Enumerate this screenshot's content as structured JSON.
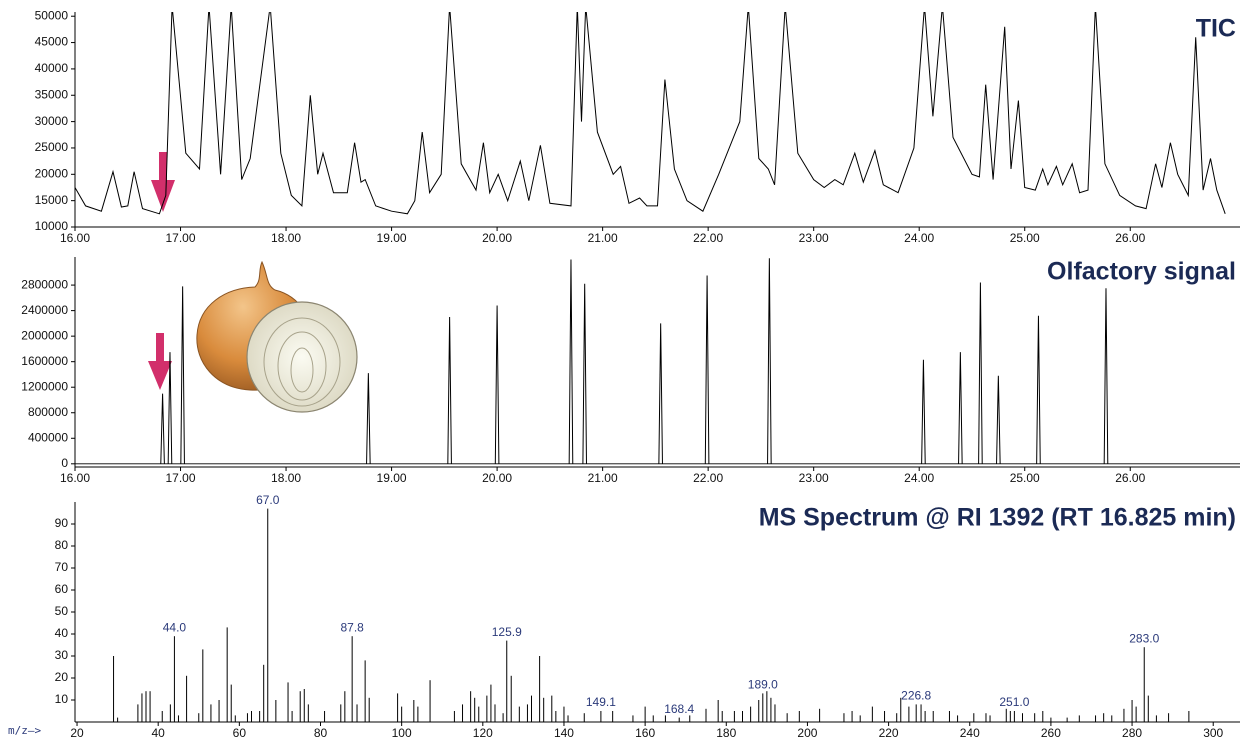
{
  "chart_data": [
    {
      "type": "line",
      "title": "TIC",
      "color": "#000000",
      "x": [
        16.0,
        16.1,
        16.25,
        16.36,
        16.44,
        16.5,
        16.56,
        16.64,
        16.8,
        16.86,
        16.92,
        17.05,
        17.18,
        17.27,
        17.38,
        17.48,
        17.58,
        17.66,
        17.85,
        17.95,
        18.05,
        18.15,
        18.23,
        18.3,
        18.35,
        18.45,
        18.58,
        18.65,
        18.71,
        18.75,
        18.85,
        19.0,
        19.15,
        19.22,
        19.29,
        19.36,
        19.47,
        19.55,
        19.66,
        19.8,
        19.87,
        19.93,
        20.01,
        20.1,
        20.22,
        20.3,
        20.41,
        20.5,
        20.7,
        20.76,
        20.8,
        20.84,
        20.95,
        21.1,
        21.17,
        21.25,
        21.35,
        21.42,
        21.52,
        21.59,
        21.68,
        21.8,
        21.95,
        22.1,
        22.3,
        22.38,
        22.48,
        22.57,
        22.63,
        22.73,
        22.85,
        23.0,
        23.1,
        23.2,
        23.28,
        23.39,
        23.47,
        23.58,
        23.66,
        23.8,
        23.95,
        24.05,
        24.13,
        24.22,
        24.32,
        24.5,
        24.57,
        24.63,
        24.7,
        24.81,
        24.87,
        24.94,
        25.0,
        25.1,
        25.17,
        25.22,
        25.3,
        25.36,
        25.45,
        25.52,
        25.6,
        25.67,
        25.76,
        25.9,
        26.05,
        26.15,
        26.24,
        26.3,
        26.38,
        26.45,
        26.55,
        26.62,
        26.69,
        26.76,
        26.82,
        26.9
      ],
      "values": [
        17500,
        14000,
        13000,
        20500,
        13800,
        14000,
        20500,
        13500,
        12500,
        16000,
        52000,
        24000,
        21000,
        52000,
        20000,
        52000,
        19000,
        23000,
        52000,
        24000,
        16000,
        14000,
        35000,
        20000,
        24000,
        16500,
        16500,
        26000,
        18500,
        19000,
        14000,
        13000,
        12500,
        15000,
        28000,
        16500,
        20000,
        52000,
        22000,
        17000,
        26000,
        16500,
        20000,
        15000,
        22500,
        15000,
        25500,
        14500,
        14000,
        52000,
        30000,
        52000,
        28000,
        20000,
        21500,
        14500,
        15500,
        14000,
        14000,
        38000,
        21000,
        15000,
        13000,
        20000,
        30000,
        52000,
        23000,
        21000,
        18000,
        52000,
        24000,
        19000,
        17500,
        19000,
        18000,
        24000,
        18500,
        24500,
        18000,
        16500,
        25000,
        52000,
        31000,
        52000,
        27000,
        20000,
        19500,
        37000,
        19000,
        48000,
        21000,
        34000,
        17500,
        17000,
        21000,
        18000,
        21500,
        18000,
        22000,
        16500,
        17000,
        52000,
        22000,
        16000,
        14000,
        13500,
        22000,
        17500,
        26000,
        20000,
        16000,
        46000,
        17000,
        23000,
        17000,
        12500
      ],
      "xlim": [
        16,
        27.04
      ],
      "xticks": [
        {
          "value": 16,
          "label": "16.00"
        },
        {
          "value": 17,
          "label": "17.00"
        },
        {
          "value": 18,
          "label": "18.00"
        },
        {
          "value": 19,
          "label": "19.00"
        },
        {
          "value": 20,
          "label": "20.00"
        },
        {
          "value": 21,
          "label": "21.00"
        },
        {
          "value": 22,
          "label": "22.00"
        },
        {
          "value": 23,
          "label": "23.00"
        },
        {
          "value": 24,
          "label": "24.00"
        },
        {
          "value": 25,
          "label": "25.00"
        },
        {
          "value": 26,
          "label": "26.00"
        }
      ],
      "ylim": [
        10000,
        50800
      ],
      "yticks": [
        10000,
        15000,
        20000,
        25000,
        30000,
        35000,
        40000,
        45000,
        50000
      ]
    },
    {
      "type": "peaks",
      "title": "Olfactory signal",
      "color": "#000000",
      "x": [
        16.83,
        16.9,
        17.02,
        18.78,
        19.55,
        20.0,
        20.7,
        20.83,
        21.55,
        21.99,
        22.58,
        24.04,
        24.39,
        24.58,
        24.75,
        25.13,
        25.77
      ],
      "values": [
        1100000,
        1750000,
        2780000,
        1420000,
        2300000,
        2480000,
        3200000,
        2820000,
        2200000,
        2950000,
        3220000,
        1630000,
        1750000,
        2840000,
        1380000,
        2320000,
        2750000
      ],
      "xlim": [
        16,
        27.04
      ],
      "xticks": [
        {
          "value": 16,
          "label": "16.00"
        },
        {
          "value": 17,
          "label": "17.00"
        },
        {
          "value": 18,
          "label": "18.00"
        },
        {
          "value": 19,
          "label": "19.00"
        },
        {
          "value": 20,
          "label": "20.00"
        },
        {
          "value": 21,
          "label": "21.00"
        },
        {
          "value": 22,
          "label": "22.00"
        },
        {
          "value": 23,
          "label": "23.00"
        },
        {
          "value": 24,
          "label": "24.00"
        },
        {
          "value": 25,
          "label": "25.00"
        },
        {
          "value": 26,
          "label": "26.00"
        }
      ],
      "ylim": [
        -50000,
        3240000
      ],
      "yticks": [
        0,
        400000,
        800000,
        1200000,
        1600000,
        2000000,
        2400000,
        2800000
      ]
    },
    {
      "type": "spectrum",
      "title": "MS Spectrum @ RI 1392 (RT 16.825 min)",
      "xlabel": "m/z—>",
      "color": "#000000",
      "label_color": "#2b3a7a",
      "x": [
        29,
        30,
        35,
        36,
        37,
        38,
        41,
        43,
        44,
        45,
        47,
        50,
        51,
        53,
        55,
        57,
        58,
        59,
        62,
        63,
        65,
        66,
        67,
        69,
        72,
        73,
        75,
        76,
        77,
        81,
        85,
        86,
        87.8,
        89,
        91,
        92,
        99,
        100,
        103,
        104,
        107,
        113,
        115,
        117,
        118,
        119,
        121,
        122,
        123,
        125,
        125.9,
        127,
        129,
        131,
        132,
        134,
        135,
        137,
        138,
        140,
        141,
        145,
        149.1,
        152,
        157,
        160,
        162,
        165,
        168.4,
        171,
        175,
        178,
        179,
        182,
        184,
        186,
        188,
        189,
        190,
        191,
        192,
        195,
        198,
        203,
        209,
        211,
        213,
        216,
        219,
        222,
        223,
        225,
        226.8,
        228,
        229,
        231,
        235,
        237,
        241,
        244,
        245,
        249,
        250,
        251,
        253,
        256,
        258,
        260,
        264,
        267,
        271,
        273,
        275,
        278,
        280,
        281,
        283,
        284,
        286,
        289,
        294
      ],
      "values": [
        30,
        2,
        8,
        13,
        14,
        14,
        5,
        8,
        39,
        3,
        21,
        4,
        33,
        8,
        10,
        43,
        17,
        3,
        4,
        5,
        5,
        26,
        97,
        10,
        18,
        5,
        14,
        15,
        8,
        5,
        8,
        14,
        39,
        8,
        28,
        11,
        13,
        7,
        10,
        7,
        19,
        5,
        8,
        14,
        11,
        7,
        12,
        17,
        8,
        4,
        37,
        21,
        7,
        8,
        12,
        30,
        11,
        12,
        5,
        7,
        3,
        4,
        5,
        5,
        3,
        7,
        3,
        3,
        2,
        3,
        6,
        10,
        5,
        5,
        5,
        7,
        10,
        13,
        14,
        11,
        8,
        4,
        5,
        6,
        4,
        5,
        3,
        7,
        5,
        4,
        11,
        7,
        8,
        8,
        5,
        5,
        5,
        3,
        4,
        4,
        3,
        6,
        5,
        5,
        4,
        4,
        5,
        2,
        2,
        3,
        3,
        4,
        3,
        6,
        10,
        7,
        34,
        12,
        3,
        4,
        5
      ],
      "peak_labels": [
        {
          "value": 44,
          "label": "44.0"
        },
        {
          "value": 67,
          "label": "67.0"
        },
        {
          "value": 87.8,
          "label": "87.8"
        },
        {
          "value": 125.9,
          "label": "125.9"
        },
        {
          "value": 149.1,
          "label": "149.1"
        },
        {
          "value": 168.4,
          "label": "168.4"
        },
        {
          "value": 189,
          "label": "189.0"
        },
        {
          "value": 226.8,
          "label": "226.8"
        },
        {
          "value": 251,
          "label": "251.0"
        },
        {
          "value": 283,
          "label": "283.0"
        }
      ],
      "xlim": [
        19.5,
        306.6
      ],
      "xticks": [
        20,
        40,
        60,
        80,
        100,
        120,
        140,
        160,
        180,
        200,
        220,
        240,
        260,
        280,
        300
      ],
      "ylim": [
        0,
        100
      ],
      "yticks": [
        10,
        20,
        30,
        40,
        50,
        60,
        70,
        80,
        90
      ]
    }
  ]
}
